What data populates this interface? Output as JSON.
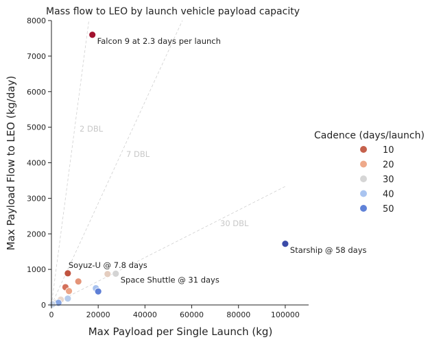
{
  "chart_data": {
    "type": "scatter",
    "title": "Mass flow to LEO by launch vehicle payload capacity",
    "xlabel": "Max Payload per Single Launch (kg)",
    "ylabel": "Max Payload Flow to LEO (kg/day)",
    "xlim": [
      0,
      110000
    ],
    "ylim": [
      0,
      8000
    ],
    "x_ticks": [
      0,
      20000,
      40000,
      60000,
      80000,
      100000
    ],
    "y_ticks": [
      0,
      1000,
      2000,
      3000,
      4000,
      5000,
      6000,
      7000,
      8000
    ],
    "grid": false,
    "legend": {
      "title": "Cadence (days/launch)",
      "placement": "right",
      "entries": [
        {
          "label": "10",
          "color": "#c5614c"
        },
        {
          "label": "20",
          "color": "#eea98a"
        },
        {
          "label": "30",
          "color": "#d6d6d6"
        },
        {
          "label": "40",
          "color": "#a9c4f0"
        },
        {
          "label": "50",
          "color": "#6082d8"
        }
      ]
    },
    "reference_lines": [
      {
        "label": "2 DBL",
        "slope": 0.5
      },
      {
        "label": "7 DBL",
        "slope": 0.142857
      },
      {
        "label": "30 DBL",
        "slope": 0.033333
      }
    ],
    "points": [
      {
        "x": 17500,
        "y": 7600,
        "cadence": 2.3,
        "color": "#a2122f"
      },
      {
        "x": 100000,
        "y": 1720,
        "cadence": 58,
        "color": "#3b4ba8"
      },
      {
        "x": 7000,
        "y": 890,
        "cadence": 7.8,
        "color": "#c0533f"
      },
      {
        "x": 6000,
        "y": 500,
        "cadence": 12,
        "color": "#d4705a"
      },
      {
        "x": 11500,
        "y": 660,
        "cadence": 17,
        "color": "#e49478"
      },
      {
        "x": 7500,
        "y": 390,
        "cadence": 19,
        "color": "#eca587"
      },
      {
        "x": 24000,
        "y": 870,
        "cadence": 28,
        "color": "#e4cdbf"
      },
      {
        "x": 27500,
        "y": 880,
        "cadence": 31,
        "color": "#d4d4d4"
      },
      {
        "x": 4000,
        "y": 150,
        "cadence": 27,
        "color": "#e8d8ce"
      },
      {
        "x": 2000,
        "y": 60,
        "cadence": 33,
        "color": "#d9d9d9"
      },
      {
        "x": 7000,
        "y": 180,
        "cadence": 38,
        "color": "#b6cbeb"
      },
      {
        "x": 19000,
        "y": 470,
        "cadence": 40,
        "color": "#a7c1ee"
      },
      {
        "x": 20000,
        "y": 380,
        "cadence": 52,
        "color": "#5e7fd6"
      },
      {
        "x": 3000,
        "y": 60,
        "cadence": 45,
        "color": "#87a6e4"
      },
      {
        "x": 500,
        "y": 20,
        "cadence": 36,
        "color": "#c9d6ea"
      }
    ],
    "annotations": [
      {
        "text": "Falcon 9 at 2.3 days per launch",
        "x": 17500,
        "y": 7600,
        "anchor": "below-right"
      },
      {
        "text": "Starship @ 58 days",
        "x": 100000,
        "y": 1720,
        "anchor": "below-right"
      },
      {
        "text": "Soyuz-U @ 7.8 days",
        "x": 7000,
        "y": 890,
        "anchor": "above-right"
      },
      {
        "text": "Space Shuttle @ 31 days",
        "x": 27500,
        "y": 880,
        "anchor": "below-right"
      }
    ]
  }
}
